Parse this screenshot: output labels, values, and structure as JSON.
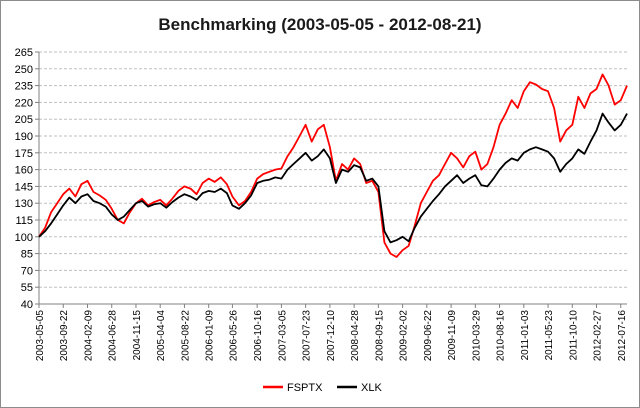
{
  "chart_data": {
    "type": "line",
    "title": "Benchmarking (2003-05-05 - 2012-08-21)",
    "xlabel": "",
    "ylabel": "",
    "ylim": [
      40,
      265
    ],
    "yticks": [
      40,
      55,
      70,
      85,
      100,
      115,
      130,
      145,
      160,
      175,
      190,
      205,
      220,
      235,
      250,
      265
    ],
    "xlim": [
      "2003-05-05",
      "2012-08-21"
    ],
    "xticks": [
      "2003-05-05",
      "2003-09-22",
      "2004-02-09",
      "2004-06-28",
      "2004-11-15",
      "2005-04-04",
      "2005-08-22",
      "2006-01-09",
      "2006-05-26",
      "2006-10-16",
      "2007-03-05",
      "2007-07-23",
      "2007-12-10",
      "2008-04-28",
      "2008-09-15",
      "2009-02-02",
      "2009-06-22",
      "2009-11-09",
      "2010-03-29",
      "2010-08-16",
      "2011-01-03",
      "2011-05-23",
      "2011-10-10",
      "2012-02-27",
      "2012-07-16"
    ],
    "grid": "horizontal",
    "legend_position": "bottom",
    "series": [
      {
        "name": "FSPTX",
        "color": "#ff0000",
        "x": [
          "2003-05-05",
          "2003-06-09",
          "2003-07-14",
          "2003-08-18",
          "2003-09-22",
          "2003-10-27",
          "2003-12-01",
          "2004-01-05",
          "2004-02-09",
          "2004-03-15",
          "2004-04-19",
          "2004-05-24",
          "2004-06-28",
          "2004-08-02",
          "2004-09-06",
          "2004-10-11",
          "2004-11-15",
          "2004-12-20",
          "2005-01-24",
          "2005-02-28",
          "2005-04-04",
          "2005-05-09",
          "2005-06-13",
          "2005-07-18",
          "2005-08-22",
          "2005-09-26",
          "2005-10-31",
          "2005-12-05",
          "2006-01-09",
          "2006-02-13",
          "2006-03-20",
          "2006-04-24",
          "2006-05-26",
          "2006-07-03",
          "2006-08-07",
          "2006-09-11",
          "2006-10-16",
          "2006-11-20",
          "2006-12-25",
          "2007-01-29",
          "2007-03-05",
          "2007-04-09",
          "2007-05-14",
          "2007-06-18",
          "2007-07-23",
          "2007-08-27",
          "2007-10-01",
          "2007-11-05",
          "2007-12-10",
          "2008-01-14",
          "2008-02-18",
          "2008-03-24",
          "2008-04-28",
          "2008-06-02",
          "2008-07-07",
          "2008-08-11",
          "2008-09-15",
          "2008-10-20",
          "2008-11-24",
          "2008-12-29",
          "2009-02-02",
          "2009-03-09",
          "2009-04-13",
          "2009-05-18",
          "2009-06-22",
          "2009-07-27",
          "2009-08-31",
          "2009-10-05",
          "2009-11-09",
          "2009-12-14",
          "2010-01-18",
          "2010-02-22",
          "2010-03-29",
          "2010-05-03",
          "2010-06-07",
          "2010-07-12",
          "2010-08-16",
          "2010-09-20",
          "2010-10-25",
          "2010-11-29",
          "2011-01-03",
          "2011-02-07",
          "2011-03-14",
          "2011-04-18",
          "2011-05-23",
          "2011-06-27",
          "2011-08-01",
          "2011-09-05",
          "2011-10-10",
          "2011-11-14",
          "2011-12-19",
          "2012-01-23",
          "2012-02-27",
          "2012-04-02",
          "2012-05-07",
          "2012-06-11",
          "2012-07-16",
          "2012-08-21"
        ],
        "values": [
          100,
          108,
          122,
          130,
          138,
          143,
          136,
          147,
          150,
          140,
          137,
          133,
          125,
          115,
          112,
          122,
          130,
          134,
          128,
          131,
          133,
          128,
          134,
          141,
          145,
          143,
          138,
          148,
          152,
          149,
          153,
          147,
          136,
          128,
          132,
          140,
          152,
          156,
          158,
          160,
          161,
          172,
          180,
          190,
          200,
          185,
          196,
          200,
          180,
          150,
          165,
          160,
          170,
          165,
          148,
          150,
          140,
          95,
          85,
          82,
          88,
          92,
          110,
          130,
          140,
          150,
          155,
          165,
          175,
          170,
          162,
          172,
          176,
          160,
          165,
          180,
          200,
          210,
          222,
          215,
          230,
          238,
          236,
          232,
          230,
          215,
          185,
          195,
          200,
          225,
          215,
          228,
          232,
          245,
          235,
          218,
          222,
          235
        ]
      },
      {
        "name": "XLK",
        "color": "#000000",
        "x": [
          "2003-05-05",
          "2003-06-09",
          "2003-07-14",
          "2003-08-18",
          "2003-09-22",
          "2003-10-27",
          "2003-12-01",
          "2004-01-05",
          "2004-02-09",
          "2004-03-15",
          "2004-04-19",
          "2004-05-24",
          "2004-06-28",
          "2004-08-02",
          "2004-09-06",
          "2004-10-11",
          "2004-11-15",
          "2004-12-20",
          "2005-01-24",
          "2005-02-28",
          "2005-04-04",
          "2005-05-09",
          "2005-06-13",
          "2005-07-18",
          "2005-08-22",
          "2005-09-26",
          "2005-10-31",
          "2005-12-05",
          "2006-01-09",
          "2006-02-13",
          "2006-03-20",
          "2006-04-24",
          "2006-05-26",
          "2006-07-03",
          "2006-08-07",
          "2006-09-11",
          "2006-10-16",
          "2006-11-20",
          "2006-12-25",
          "2007-01-29",
          "2007-03-05",
          "2007-04-09",
          "2007-05-14",
          "2007-06-18",
          "2007-07-23",
          "2007-08-27",
          "2007-10-01",
          "2007-11-05",
          "2007-12-10",
          "2008-01-14",
          "2008-02-18",
          "2008-03-24",
          "2008-04-28",
          "2008-06-02",
          "2008-07-07",
          "2008-08-11",
          "2008-09-15",
          "2008-10-20",
          "2008-11-24",
          "2008-12-29",
          "2009-02-02",
          "2009-03-09",
          "2009-04-13",
          "2009-05-18",
          "2009-06-22",
          "2009-07-27",
          "2009-08-31",
          "2009-10-05",
          "2009-11-09",
          "2009-12-14",
          "2010-01-18",
          "2010-02-22",
          "2010-03-29",
          "2010-05-03",
          "2010-06-07",
          "2010-07-12",
          "2010-08-16",
          "2010-09-20",
          "2010-10-25",
          "2010-11-29",
          "2011-01-03",
          "2011-02-07",
          "2011-03-14",
          "2011-04-18",
          "2011-05-23",
          "2011-06-27",
          "2011-08-01",
          "2011-09-05",
          "2011-10-10",
          "2011-11-14",
          "2011-12-19",
          "2012-01-23",
          "2012-02-27",
          "2012-04-02",
          "2012-05-07",
          "2012-06-11",
          "2012-07-16",
          "2012-08-21"
        ],
        "values": [
          100,
          105,
          112,
          120,
          128,
          135,
          130,
          136,
          138,
          132,
          130,
          127,
          120,
          115,
          118,
          124,
          130,
          132,
          127,
          129,
          130,
          126,
          131,
          135,
          138,
          136,
          133,
          139,
          141,
          140,
          143,
          139,
          128,
          125,
          130,
          137,
          148,
          150,
          151,
          153,
          152,
          160,
          165,
          170,
          175,
          168,
          172,
          178,
          170,
          148,
          160,
          158,
          164,
          162,
          150,
          152,
          145,
          105,
          95,
          97,
          100,
          96,
          108,
          118,
          125,
          132,
          138,
          145,
          150,
          155,
          148,
          152,
          155,
          146,
          145,
          152,
          160,
          166,
          170,
          168,
          175,
          178,
          180,
          178,
          176,
          170,
          158,
          165,
          170,
          178,
          174,
          185,
          195,
          210,
          202,
          195,
          200,
          210
        ]
      }
    ]
  }
}
